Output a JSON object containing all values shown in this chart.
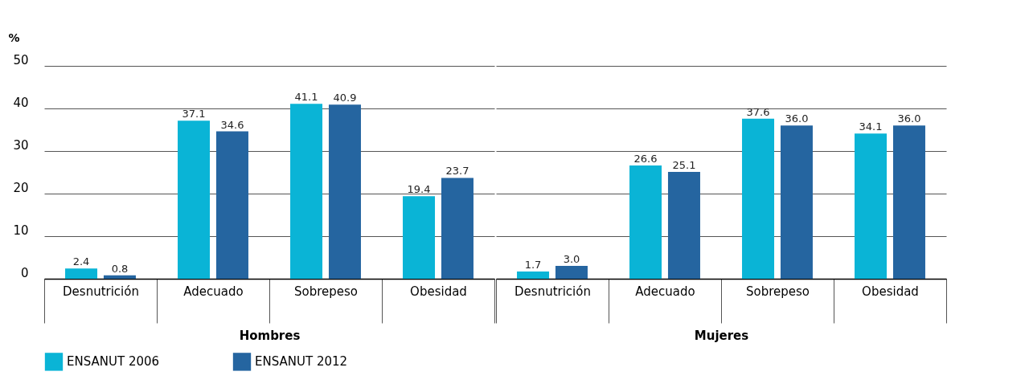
{
  "chart_data": [
    {
      "type": "bar",
      "xlabel": "Hombres",
      "ylabel": "%",
      "categories": [
        "Desnutrición",
        "Adecuado",
        "Sobrepeso",
        "Obesidad"
      ],
      "ylim": [
        0,
        50
      ],
      "yticks": [
        0,
        10,
        20,
        30,
        40,
        50
      ],
      "grid": "y",
      "legend": "bottom",
      "series": [
        {
          "name": "ENSANUT 2006",
          "color": "#0ab4d6",
          "values": [
            2.4,
            37.1,
            41.1,
            19.4
          ],
          "value_labels": [
            "2.4",
            "37.1",
            "41.1",
            "19.4"
          ]
        },
        {
          "name": "ENSANUT 2012",
          "color": "#2565a0",
          "values": [
            0.8,
            34.6,
            40.9,
            23.7
          ],
          "value_labels": [
            "0.8",
            "34.6",
            "40.9",
            "23.7"
          ]
        }
      ]
    },
    {
      "type": "bar",
      "xlabel": "Mujeres",
      "categories": [
        "Desnutrición",
        "Adecuado",
        "Sobrepeso",
        "Obesidad"
      ],
      "ylim": [
        0,
        50
      ],
      "yticks": [
        0,
        10,
        20,
        30,
        40,
        50
      ],
      "grid": "y",
      "tick_labels": "x",
      "series": [
        {
          "color": "#0ab4d6",
          "values": [
            1.7,
            26.6,
            37.6,
            34.1
          ],
          "value_labels": [
            "1.7",
            "26.6",
            "37.6",
            "34.1"
          ]
        },
        {
          "color": "#2565a0",
          "values": [
            3.0,
            25.1,
            36.0,
            36.0
          ],
          "value_labels": [
            "3.0",
            "25.1",
            "36.0",
            "36.0"
          ]
        }
      ]
    }
  ]
}
